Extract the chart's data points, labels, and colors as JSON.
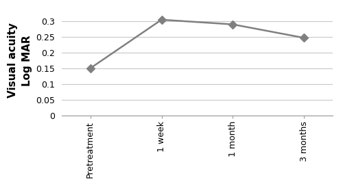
{
  "x_labels": [
    "Pretreatment",
    "1 week",
    "1 month",
    "3 months"
  ],
  "y_values": [
    0.15,
    0.305,
    0.29,
    0.247
  ],
  "line_color": "#808080",
  "marker_color": "#808080",
  "marker_style": "D",
  "marker_size": 6,
  "line_width": 1.8,
  "ylabel": "Visual acuity\nLog MAR",
  "ylim": [
    0,
    0.35
  ],
  "yticks": [
    0,
    0.05,
    0.1,
    0.15,
    0.2,
    0.25,
    0.3
  ],
  "ytick_labels": [
    "0",
    "0.05",
    "0.1",
    "0.15",
    "0.2",
    "0.25",
    "0.3"
  ],
  "background_color": "#ffffff",
  "grid_color": "#c8c8c8",
  "ylabel_fontsize": 11,
  "tick_fontsize": 9,
  "xlabel_fontsize": 9
}
